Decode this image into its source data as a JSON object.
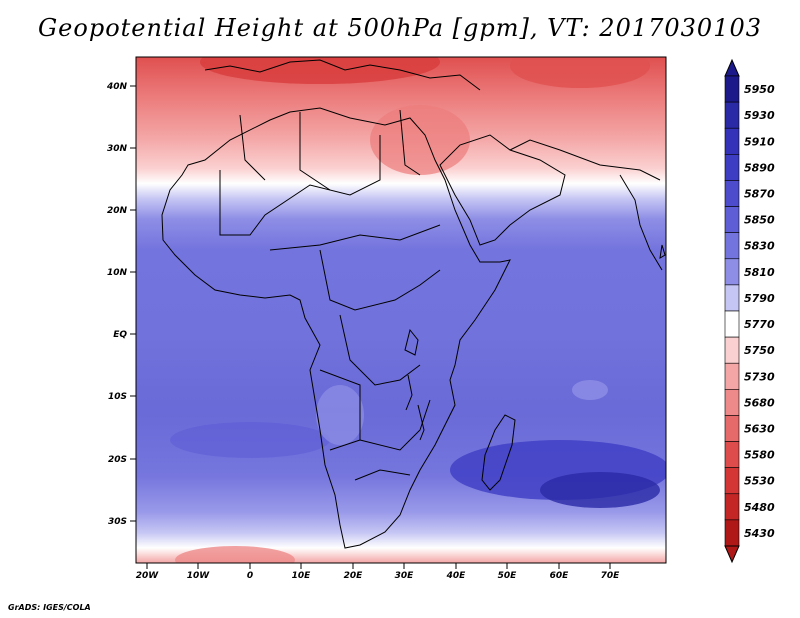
{
  "title": "Geopotential Height at 500hPa [gpm], VT: 2017030103",
  "footer": "GrADS: IGES/COLA",
  "lat_labels": [
    "40N",
    "30N",
    "20N",
    "10N",
    "EQ",
    "10S",
    "20S",
    "30S"
  ],
  "lon_labels": [
    "20W",
    "10W",
    "0",
    "10E",
    "20E",
    "30E",
    "40E",
    "50E",
    "60E",
    "70E"
  ],
  "legend": {
    "levels": [
      "5950",
      "5930",
      "5910",
      "5890",
      "5870",
      "5850",
      "5830",
      "5810",
      "5790",
      "5770",
      "5750",
      "5730",
      "5680",
      "5630",
      "5580",
      "5530",
      "5480",
      "5430"
    ],
    "colors": [
      "#1c1a8a",
      "#2b2aa6",
      "#3432b8",
      "#3d3dc4",
      "#4c4ccc",
      "#5e5ed6",
      "#7474de",
      "#8e8ee6",
      "#c6c6f4",
      "#ffffff",
      "#fbd0d0",
      "#f4a6a6",
      "#ee8a8a",
      "#e76a6a",
      "#df4c4c",
      "#d43636",
      "#c42626",
      "#b01818"
    ]
  }
}
